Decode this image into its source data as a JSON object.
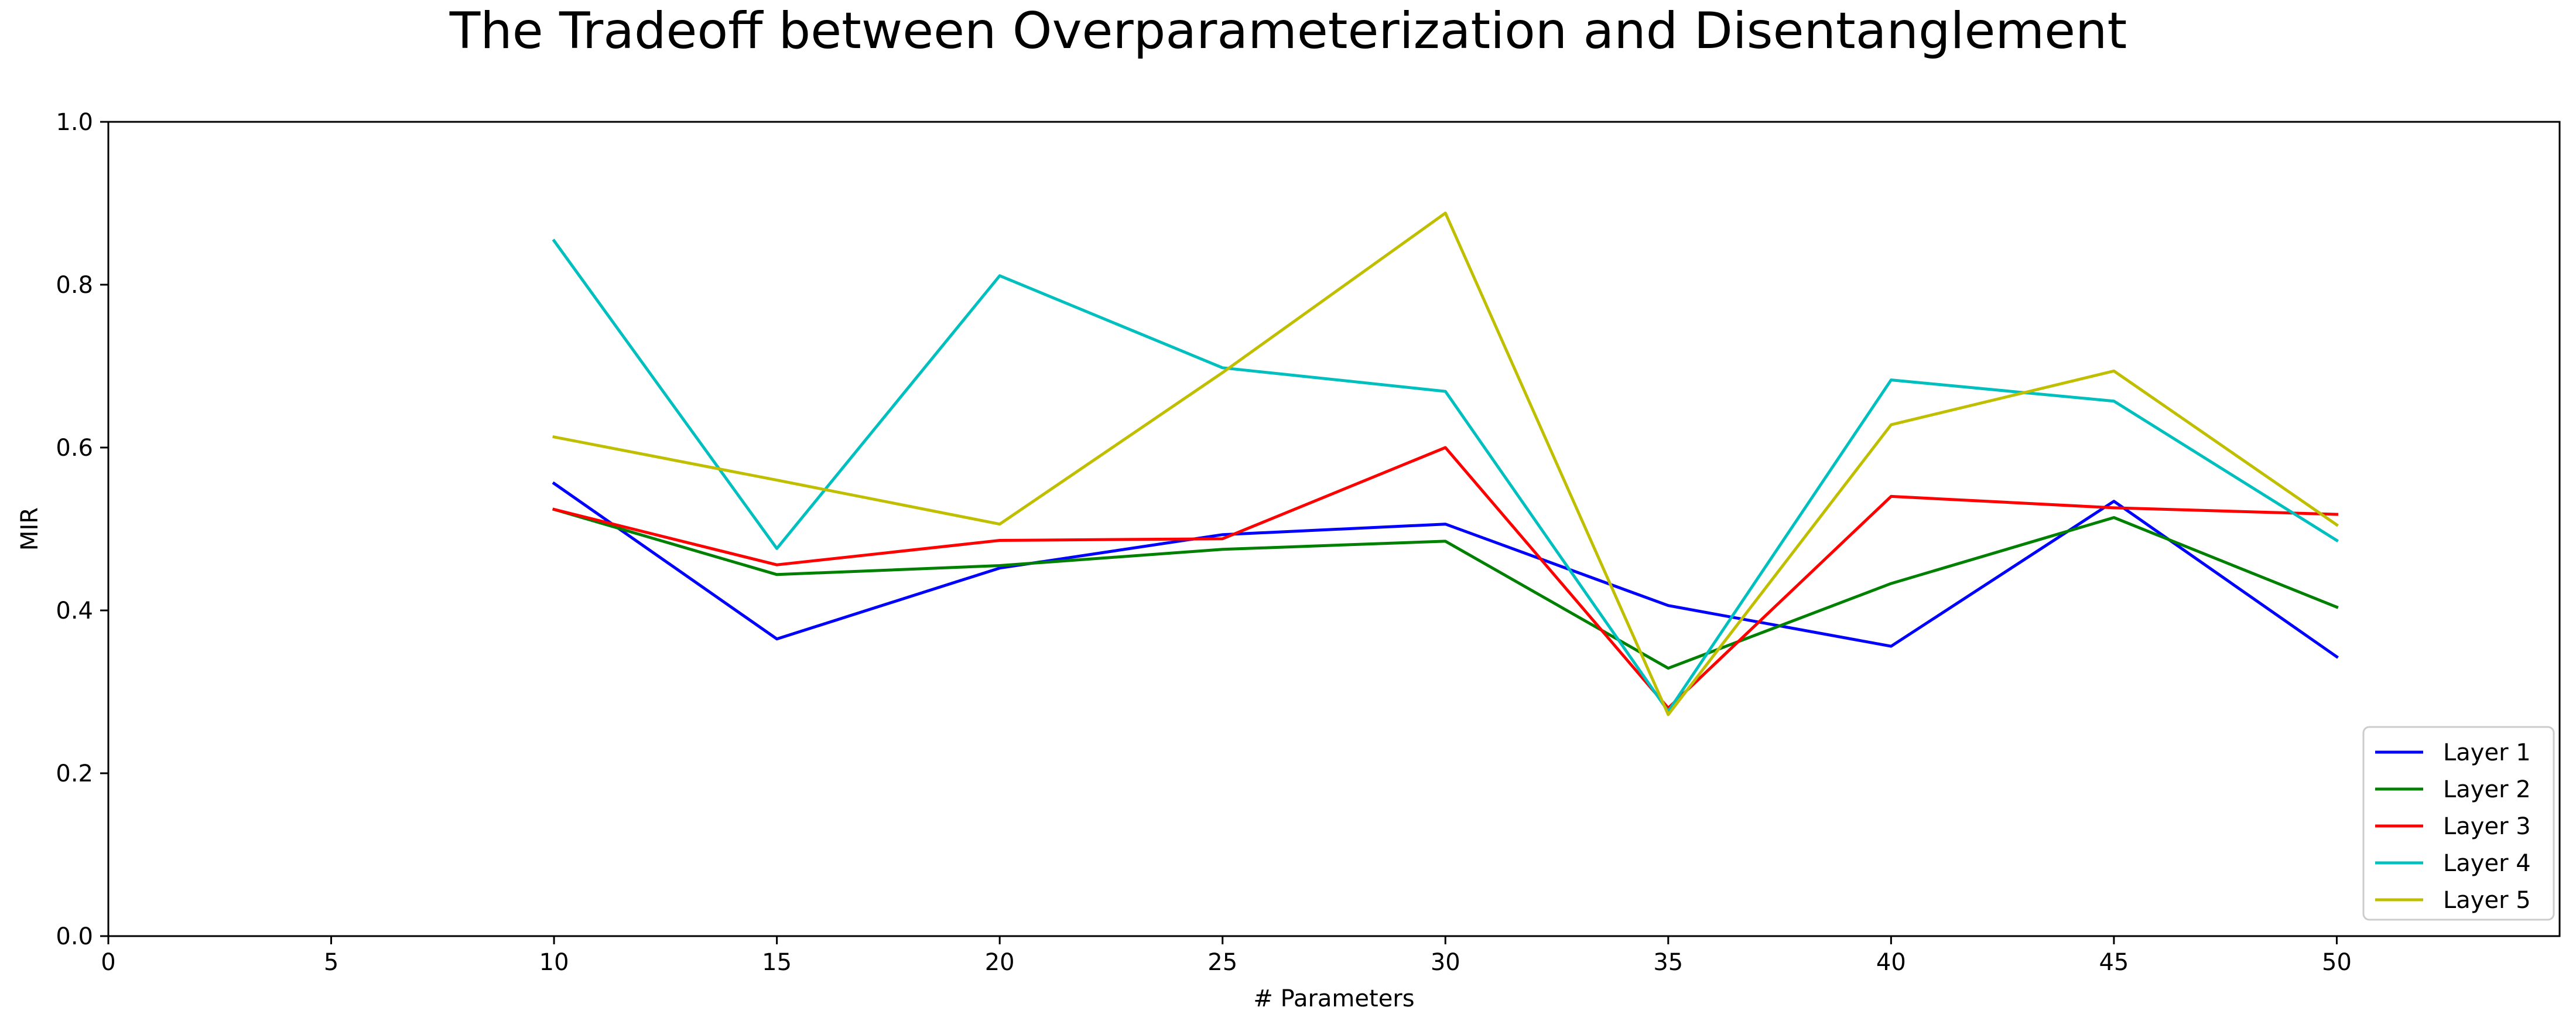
{
  "chart_data": {
    "type": "line",
    "title": "The Tradeoff between Overparameterization and Disentanglement",
    "xlabel": "# Parameters",
    "ylabel": "MIR",
    "xlim": [
      0,
      55
    ],
    "ylim": [
      0,
      1
    ],
    "xticks": [
      0,
      5,
      10,
      15,
      20,
      25,
      30,
      35,
      40,
      45,
      50
    ],
    "yticks": [
      0.0,
      0.2,
      0.4,
      0.6,
      0.8,
      1.0
    ],
    "grid": false,
    "legend_position": "bottom-right",
    "x": [
      10,
      15,
      20,
      25,
      30,
      35,
      40,
      45,
      50
    ],
    "series": [
      {
        "name": "Layer 1",
        "color": "#0000ff",
        "values": [
          0.556,
          0.365,
          0.452,
          0.493,
          0.506,
          0.406,
          0.356,
          0.534,
          0.343
        ]
      },
      {
        "name": "Layer 2",
        "color": "#008000",
        "values": [
          0.524,
          0.444,
          0.455,
          0.475,
          0.485,
          0.329,
          0.433,
          0.514,
          0.404
        ]
      },
      {
        "name": "Layer 3",
        "color": "#ff0000",
        "values": [
          0.524,
          0.456,
          0.486,
          0.488,
          0.6,
          0.28,
          0.54,
          0.526,
          0.518
        ]
      },
      {
        "name": "Layer 4",
        "color": "#00bfbf",
        "values": [
          0.854,
          0.476,
          0.811,
          0.698,
          0.669,
          0.276,
          0.683,
          0.657,
          0.486
        ]
      },
      {
        "name": "Layer 5",
        "color": "#bfbf00",
        "values": [
          0.613,
          0.56,
          0.506,
          0.692,
          0.888,
          0.272,
          0.628,
          0.694,
          0.505
        ]
      }
    ]
  }
}
